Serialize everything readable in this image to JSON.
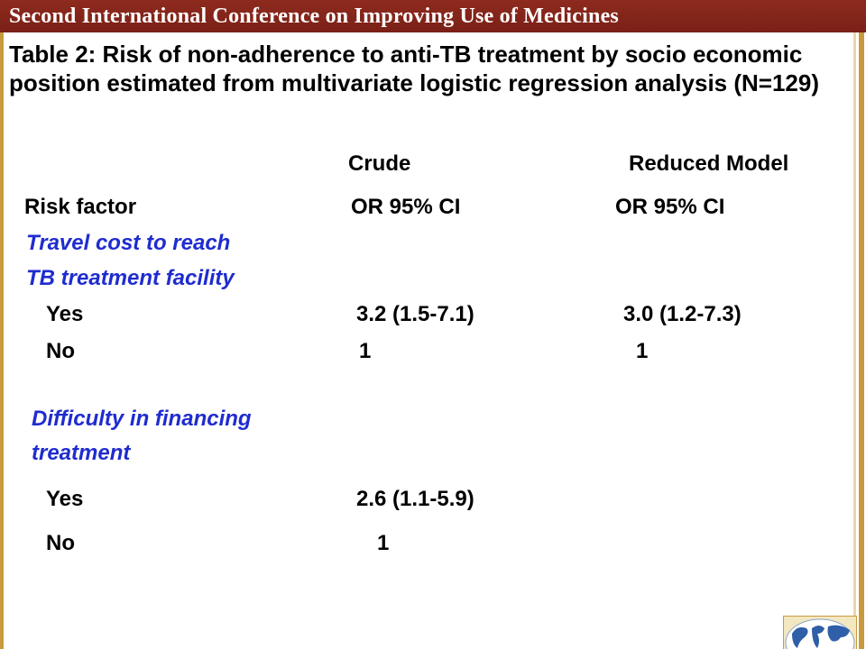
{
  "banner": {
    "title": "Second International Conference on Improving Use of Medicines"
  },
  "slide": {
    "title": "Table 2: Risk of non-adherence to anti-TB treatment by socio economic position estimated from multivariate logistic regression analysis (N=129)"
  },
  "table": {
    "group_headers": {
      "crude": "Crude",
      "reduced": "Reduced Model"
    },
    "column_headers": {
      "risk_factor": "Risk factor",
      "crude_or_ci": "OR  95% CI",
      "reduced_or_ci": "OR 95% CI"
    },
    "sections": [
      {
        "heading_line1": "Travel cost to reach",
        "heading_line2": "TB treatment facility",
        "rows": [
          {
            "label": "Yes",
            "crude": "3.2 (1.5-7.1)",
            "reduced": "3.0 (1.2-7.3)"
          },
          {
            "label": "No",
            "crude": "1",
            "reduced": "1"
          }
        ]
      },
      {
        "heading_line1": "Difficulty in financing",
        "heading_line2": "treatment",
        "rows": [
          {
            "label": "Yes",
            "crude": "2.6 (1.1-5.9)",
            "reduced": ""
          },
          {
            "label": "No",
            "crude": "1",
            "reduced": ""
          }
        ]
      }
    ]
  },
  "colors": {
    "banner": "#8e2a1e",
    "frame": "#c79a3d",
    "heading_blue": "#1f2ccf"
  },
  "icons": {
    "logo": "world-globe-icon"
  }
}
